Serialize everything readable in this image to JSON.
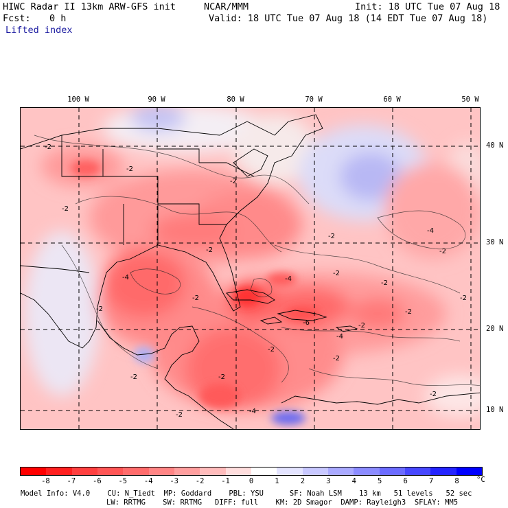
{
  "header": {
    "title": "HIWC Radar II 13km ARW-GFS init",
    "org": "NCAR/MMM",
    "init": "Init: 18 UTC Tue 07 Aug 18",
    "fcst_label": "Fcst:",
    "fcst_value": "0 h",
    "valid": "Valid: 18 UTC Tue 07 Aug 18 (14 EDT Tue 07 Aug 18)",
    "field": "Lifted index"
  },
  "map": {
    "lon_labels": [
      "100 W",
      "90 W",
      "80 W",
      "70 W",
      "60 W",
      "50 W"
    ],
    "lat_labels": [
      "40 N",
      "30 N",
      "20 N",
      "10 N"
    ],
    "contour_labels": [
      "-2",
      "-2",
      "-2",
      "-2",
      "-2",
      "-2",
      "-4",
      "-4",
      "-4",
      "-4",
      "-4",
      "-6",
      "-2",
      "-2",
      "-2",
      "-2",
      "-2",
      "-2",
      "-2",
      "-2",
      "-2",
      "-2",
      "-2",
      "-2",
      "-2",
      "-2"
    ]
  },
  "colorbar": {
    "ticks": [
      "-8",
      "-7",
      "-6",
      "-5",
      "-4",
      "-3",
      "-2",
      "-1",
      "0",
      "1",
      "2",
      "3",
      "4",
      "5",
      "6",
      "7",
      "8"
    ],
    "unit": "°C",
    "colors": [
      "#ff0000",
      "#ff2020",
      "#ff4040",
      "#ff5656",
      "#ff6c6c",
      "#ff8585",
      "#ff9f9f",
      "#ffbcbc",
      "#ffdede",
      "#ffffff",
      "#e4e4ff",
      "#c8c8ff",
      "#aaaaff",
      "#8c8cff",
      "#6c6cff",
      "#4848ff",
      "#2424ff",
      "#0000ff"
    ]
  },
  "footer": {
    "line1": "Model Info: V4.0    CU: N_Tiedt  MP: Goddard    PBL: YSU      SF: Noah LSM    13 km   51 levels   52 sec",
    "line2": "LW: RRTMG    SW: RRTMG   DIFF: full    KM: 2D Smagor  DAMP: Rayleigh3  SFLAY: MM5"
  }
}
